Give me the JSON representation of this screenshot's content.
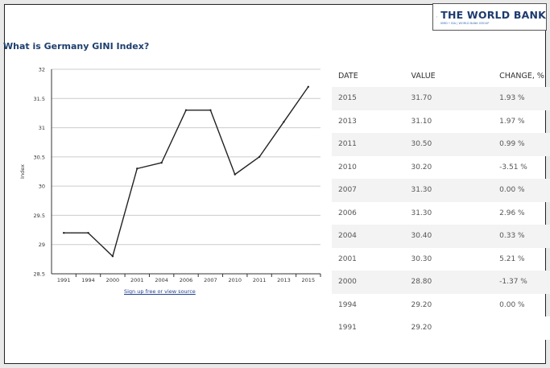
{
  "logo": {
    "name": "THE WORLD BANK",
    "tagline": "IBRD • IDA | WORLD BANK GROUP"
  },
  "page": {
    "title": "What is Germany GINI Index?",
    "source_link": "Sign up free or view source"
  },
  "table": {
    "headers": [
      "DATE",
      "VALUE",
      "CHANGE, %"
    ],
    "rows": [
      [
        "2015",
        "31.70",
        "1.93 %"
      ],
      [
        "2013",
        "31.10",
        "1.97 %"
      ],
      [
        "2011",
        "30.50",
        "0.99 %"
      ],
      [
        "2010",
        "30.20",
        "-3.51 %"
      ],
      [
        "2007",
        "31.30",
        "0.00 %"
      ],
      [
        "2006",
        "31.30",
        "2.96 %"
      ],
      [
        "2004",
        "30.40",
        "0.33 %"
      ],
      [
        "2001",
        "30.30",
        "5.21 %"
      ],
      [
        "2000",
        "28.80",
        "-1.37 %"
      ],
      [
        "1994",
        "29.20",
        "0.00 %"
      ],
      [
        "1991",
        "29.20",
        ""
      ]
    ]
  },
  "chart_data": {
    "type": "line",
    "title": "What is Germany GINI Index?",
    "xlabel": "",
    "ylabel": "Index",
    "categories": [
      "1991",
      "1994",
      "2000",
      "2001",
      "2004",
      "2006",
      "2007",
      "2010",
      "2011",
      "2013",
      "2015"
    ],
    "values": [
      29.2,
      29.2,
      28.8,
      30.3,
      30.4,
      31.3,
      31.3,
      30.2,
      30.5,
      31.1,
      31.7
    ],
    "ylim": [
      28.5,
      32
    ],
    "yticks": [
      "28.5",
      "29",
      "29.5",
      "30",
      "30.5",
      "31",
      "31.5",
      "32"
    ],
    "grid": true,
    "line_color": "#222222",
    "grid_color": "#cccccc"
  }
}
